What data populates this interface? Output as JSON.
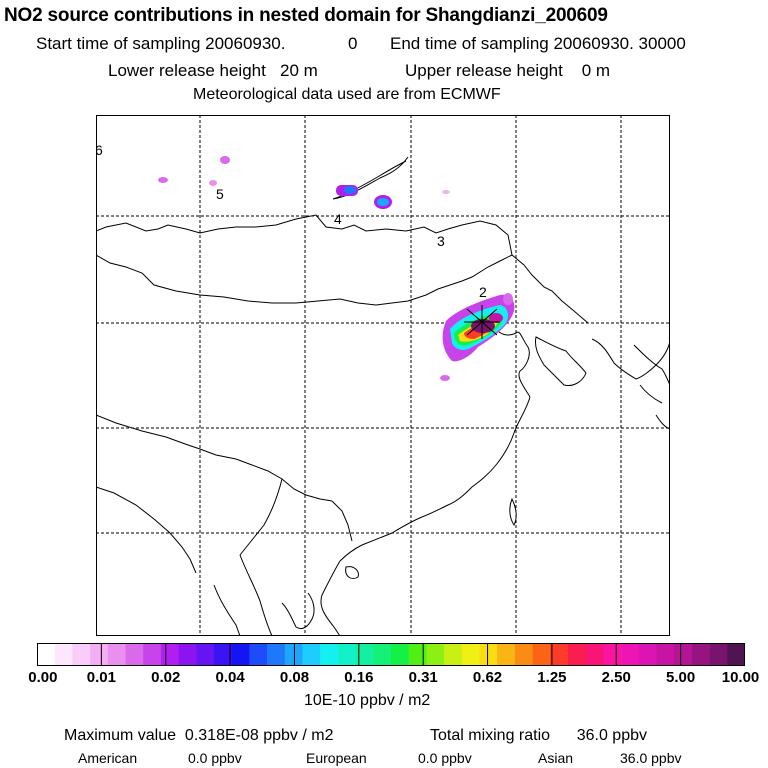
{
  "header": {
    "title": "NO2 source contributions in nested domain for Shangdianzi_200609",
    "start_label": "Start time of sampling 20060930.",
    "start_hour": "0",
    "end_label": "End time of sampling 20060930. 30000",
    "lower_release": "Lower release height   20 m",
    "upper_release": "Upper release height    0 m",
    "met_source": "Meteorological data used are from ECMWF"
  },
  "map": {
    "day_labels": [
      "2",
      "3",
      "4",
      "5",
      "6"
    ],
    "marker": "receptor-star"
  },
  "colorbar": {
    "colors": [
      "#ffffff",
      "#fde7fd",
      "#f9cdf9",
      "#f4aef4",
      "#e98fef",
      "#d96ae9",
      "#c844ea",
      "#b01ef0",
      "#8c14f0",
      "#6514f2",
      "#3c14f4",
      "#1414f4",
      "#1e4cf8",
      "#1e78fa",
      "#1ea6fc",
      "#1ecdfe",
      "#14f0f0",
      "#14f0c8",
      "#14f0a0",
      "#14f078",
      "#14f046",
      "#50f014",
      "#8cf014",
      "#c8f014",
      "#f0f014",
      "#fadc14",
      "#fab414",
      "#fa8c14",
      "#fa6414",
      "#fa3c28",
      "#fa1e50",
      "#fa1478",
      "#fa14a0",
      "#f014b4",
      "#dc14b4",
      "#c814a5",
      "#b41496",
      "#961482",
      "#78146e",
      "#501450"
    ],
    "ticks": [
      "0.00",
      "0.01",
      "0.02",
      "0.04",
      "0.08",
      "0.16",
      "0.31",
      "0.62",
      "1.25",
      "2.50",
      "5.00",
      "10.00"
    ],
    "units": "10E-10 ppbv / m2"
  },
  "summary": {
    "max_text": "Maximum value  0.318E-08 ppbv / m2",
    "total_text": "Total mixing ratio      36.0 ppbv",
    "regions": [
      {
        "name": "American",
        "value": "0.0 ppbv"
      },
      {
        "name": "European",
        "value": "0.0 ppbv"
      },
      {
        "name": "Asian",
        "value": "36.0 ppbv"
      }
    ]
  }
}
